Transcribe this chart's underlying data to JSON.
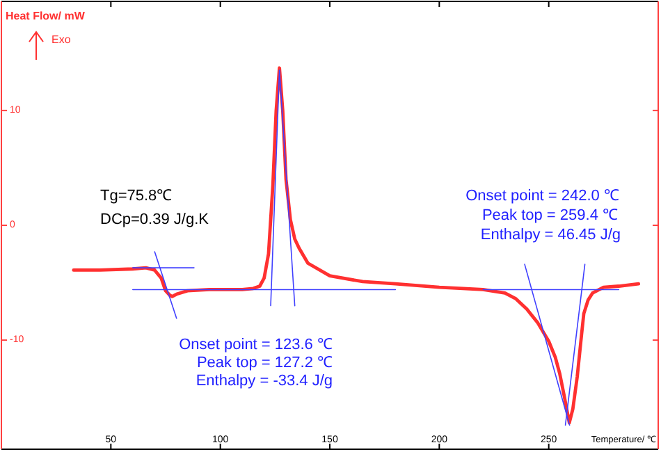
{
  "chart_data": {
    "type": "line",
    "xlabel": "Temperature/ ℃",
    "ylabel": "Heat Flow/ mW",
    "xlim": [
      0,
      300
    ],
    "ylim": [
      -19.5,
      19.5
    ],
    "xticks": [
      50,
      100,
      150,
      200,
      250
    ],
    "yticks": [
      -10,
      0,
      10
    ],
    "grid": false,
    "line_style": "solid",
    "series": [
      {
        "color": "#ff3030",
        "x": [
          33,
          45,
          60,
          66,
          70,
          73,
          75,
          77,
          78,
          80,
          85,
          95,
          110,
          115,
          118,
          120,
          122,
          124,
          125.5,
          127,
          128.5,
          130,
          132,
          134,
          136,
          140,
          150,
          165,
          180,
          200,
          220,
          230,
          235,
          240,
          245,
          250,
          253,
          255,
          257,
          259.4,
          261,
          263,
          265,
          266,
          268,
          270,
          275,
          282,
          291
        ],
        "values": [
          -3.9,
          -3.9,
          -3.8,
          -3.7,
          -3.9,
          -4.6,
          -5.7,
          -6.1,
          -6.2,
          -6.0,
          -5.7,
          -5.6,
          -5.6,
          -5.5,
          -5.3,
          -4.6,
          -2.5,
          3.5,
          10,
          13.7,
          10,
          4,
          0.5,
          -1.2,
          -2.0,
          -3.3,
          -4.4,
          -4.9,
          -5.1,
          -5.4,
          -5.6,
          -5.9,
          -6.4,
          -7.3,
          -8.5,
          -10.1,
          -11.5,
          -12.9,
          -14.8,
          -17.2,
          -16,
          -13.2,
          -9.5,
          -7.7,
          -6.5,
          -5.9,
          -5.4,
          -5.3,
          -5.1
        ]
      },
      {
        "color": "#4040ff",
        "x": [
          60,
          88
        ],
        "values": [
          -3.7,
          -3.7
        ]
      },
      {
        "color": "#4040ff",
        "x": [
          60,
          180
        ],
        "values": [
          -5.6,
          -5.6
        ]
      },
      {
        "color": "#4040ff",
        "x": [
          70,
          80
        ],
        "values": [
          -2.3,
          -8.1
        ]
      },
      {
        "color": "#4040ff",
        "x": [
          123,
          127
        ],
        "values": [
          -7,
          13.5
        ]
      },
      {
        "color": "#4040ff",
        "x": [
          134,
          127
        ],
        "values": [
          -7,
          13.5
        ]
      },
      {
        "color": "#4040ff",
        "x": [
          220,
          282
        ],
        "values": [
          -5.6,
          -5.6
        ]
      },
      {
        "color": "#4040ff",
        "x": [
          239,
          259.5
        ],
        "values": [
          -3.4,
          -17.4
        ]
      },
      {
        "color": "#4040ff",
        "x": [
          266.5,
          257.6
        ],
        "values": [
          -3.4,
          -17.4
        ]
      }
    ],
    "annotations": [
      "Exo",
      "Tg=75.8℃",
      "DCp=0.39 J/g.K",
      "Onset point = 123.6  ℃",
      "Peak top = 127.2  ℃",
      "Enthalpy = -33.4 J/g",
      "Onset point = 242.0  ℃",
      "Peak top = 259.4  ℃",
      "Enthalpy = 46.45 J/g"
    ]
  }
}
